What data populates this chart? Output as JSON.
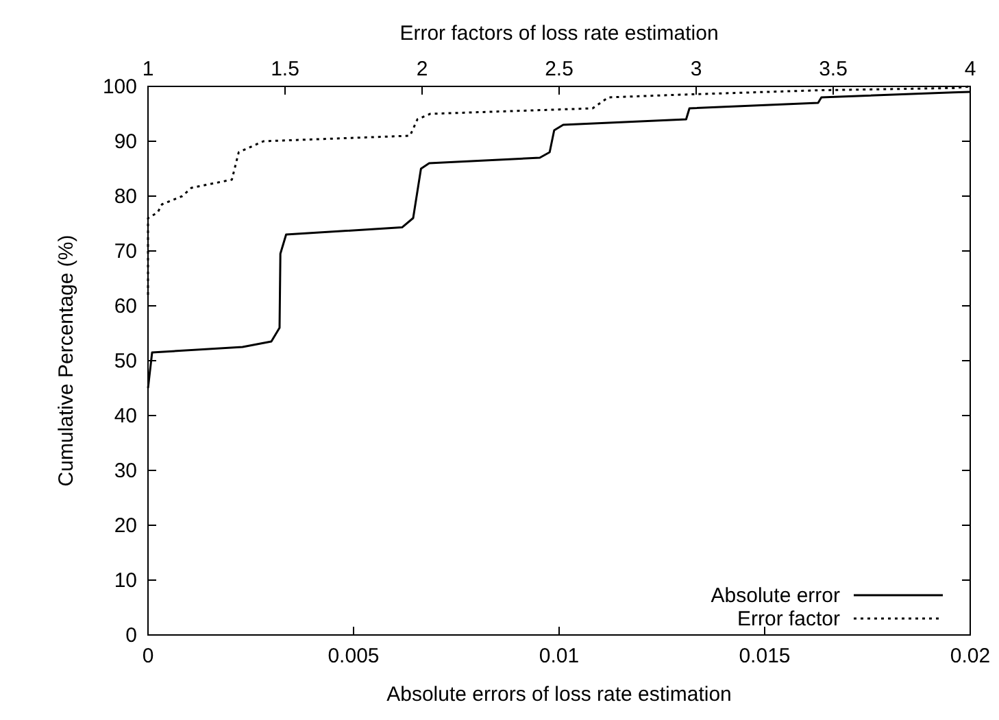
{
  "chart_data": {
    "type": "line",
    "xlabel": "Absolute errors of loss rate estimation",
    "x2label": "Error factors of loss rate estimation",
    "ylabel": "Cumulative Percentage (%)",
    "xlim": [
      0,
      0.02
    ],
    "xticks": [
      0,
      0.005,
      0.01,
      0.015,
      0.02
    ],
    "x2lim": [
      1,
      4
    ],
    "x2ticks": [
      1,
      1.5,
      2,
      2.5,
      3,
      3.5,
      4
    ],
    "ylim": [
      0,
      100
    ],
    "yticks": [
      0,
      10,
      20,
      30,
      40,
      50,
      60,
      70,
      80,
      90,
      100
    ],
    "grid": false,
    "legend": "bottom right",
    "series": [
      {
        "name": "Absolute error",
        "color": "#000000",
        "line_style": "solid",
        "x": [
          0,
          0.0001,
          0.0023,
          0.003,
          0.0032,
          0.00322,
          0.00336,
          0.00618,
          0.00645,
          0.00664,
          0.00684,
          0.00953,
          0.00977,
          0.00988,
          0.0101,
          0.01309,
          0.01317,
          0.0163,
          0.01638,
          0.01958,
          0.02
        ],
        "values": [
          45,
          51.5,
          52.5,
          53.5,
          56,
          69.5,
          73,
          74.3,
          76,
          85,
          86,
          87,
          88,
          92,
          93,
          94,
          96,
          97,
          98,
          98.9,
          99
        ]
      },
      {
        "name": "Error factor",
        "color": "#000000",
        "line_style": "dotted",
        "axis": "x2",
        "x": [
          1,
          1,
          1.035,
          1.051,
          1.125,
          1.158,
          1.306,
          1.331,
          1.421,
          1.956,
          1.983,
          2.03,
          2.622,
          2.68,
          2.95,
          3.45,
          3.94,
          4
        ],
        "values": [
          62,
          76,
          77,
          78.5,
          80,
          81.5,
          83,
          88,
          90,
          91,
          94,
          95,
          96,
          98,
          98.5,
          99.3,
          99.7,
          100
        ]
      }
    ]
  }
}
